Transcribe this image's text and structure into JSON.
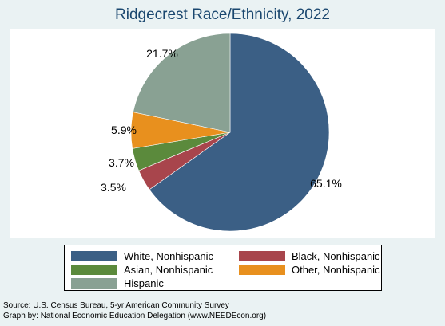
{
  "chart_data": {
    "type": "pie",
    "title": "Ridgecrest Race/Ethnicity, 2022",
    "slices": [
      {
        "name": "White, Nonhispanic",
        "value": 65.1,
        "label": "65.1%",
        "color": "#3b5f85"
      },
      {
        "name": "Black, Nonhispanic",
        "value": 3.5,
        "label": "3.5%",
        "color": "#a8454c"
      },
      {
        "name": "Asian, Nonhispanic",
        "value": 3.7,
        "label": "3.7%",
        "color": "#5b8a3c"
      },
      {
        "name": "Other, Nonhispanic",
        "value": 5.9,
        "label": "5.9%",
        "color": "#e8901e"
      },
      {
        "name": "Hispanic",
        "value": 21.7,
        "label": "21.7%",
        "color": "#89a193"
      }
    ],
    "legend_placement": "bottom"
  },
  "notes": {
    "source": "Source:  U.S. Census Bureau, 5-yr American Community Survey",
    "credit": "Graph by: National Economic Education Delegation (www.NEEDEcon.org)"
  },
  "colors": {
    "background": "#eaf2f3",
    "title": "#1a476f"
  }
}
